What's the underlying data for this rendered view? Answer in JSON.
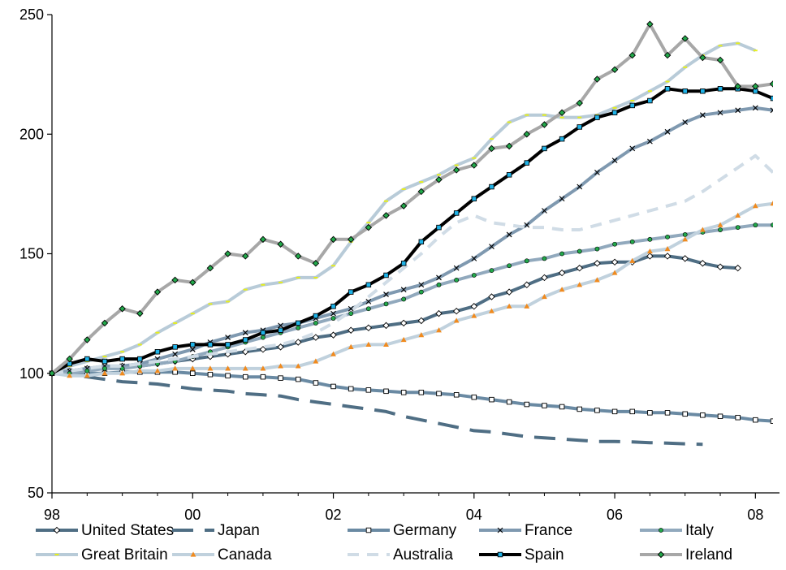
{
  "chart_data": {
    "type": "line",
    "title": "",
    "xlabel": "",
    "ylabel": "",
    "x_start": 1998.0,
    "x_step": 0.25,
    "xlim": [
      1998,
      2008.25
    ],
    "ylim": [
      50,
      250
    ],
    "x_ticks": [
      {
        "value": 1998,
        "label": "98"
      },
      {
        "value": 2000,
        "label": "00"
      },
      {
        "value": 2002,
        "label": "02"
      },
      {
        "value": 2004,
        "label": "04"
      },
      {
        "value": 2006,
        "label": "06"
      },
      {
        "value": 2008,
        "label": "08"
      }
    ],
    "y_ticks": [
      {
        "value": 50,
        "label": "50"
      },
      {
        "value": 100,
        "label": "100"
      },
      {
        "value": 150,
        "label": "150"
      },
      {
        "value": 200,
        "label": "200"
      },
      {
        "value": 250,
        "label": "250"
      }
    ],
    "grid": false,
    "legend_position": "bottom",
    "series": [
      {
        "name": "United States",
        "color": "#4f6e84",
        "width": 4,
        "dash": "",
        "marker": "diamond",
        "marker_fill": "#ffffff",
        "values": [
          100,
          101,
          102,
          102,
          103,
          103,
          104,
          105,
          106,
          107,
          108,
          109,
          110,
          111,
          113,
          115,
          116,
          118,
          119,
          120,
          121,
          122,
          125,
          126,
          128,
          132,
          134,
          137,
          140,
          142,
          144,
          146,
          146.5,
          146.5,
          149,
          149,
          148,
          146,
          144.5,
          144
        ]
      },
      {
        "name": "Japan",
        "color": "#4f6e84",
        "width": 4,
        "dash": "26,14",
        "marker": "none",
        "marker_fill": "",
        "values": [
          100,
          99.5,
          98.5,
          97.5,
          96.5,
          96,
          95.5,
          94.5,
          93.5,
          93,
          92.5,
          91.5,
          91,
          90.5,
          89,
          88,
          87,
          86,
          85,
          84,
          82,
          80.5,
          79,
          77.5,
          76,
          75.5,
          74.5,
          73.5,
          73,
          72.5,
          72,
          71.5,
          71.5,
          71.3,
          71,
          70.8,
          70.5,
          70.3
        ]
      },
      {
        "name": "Germany",
        "color": "#6a8aa3",
        "width": 4,
        "dash": "",
        "marker": "square",
        "marker_fill": "#ffffff",
        "values": [
          100,
          100,
          100,
          100,
          100.5,
          100.5,
          100.5,
          100.5,
          100,
          99.5,
          99,
          98.5,
          98.5,
          98,
          97.5,
          96,
          94.5,
          93.5,
          93,
          92.5,
          92,
          92,
          91.5,
          91,
          90,
          89,
          88,
          87,
          86.5,
          86,
          85,
          84.5,
          84,
          84,
          83.5,
          83.5,
          83,
          82.5,
          82,
          81.5,
          80.5,
          80
        ]
      },
      {
        "name": "France",
        "color": "#7f99b0",
        "width": 4,
        "dash": "",
        "marker": "x",
        "marker_fill": "",
        "values": [
          100,
          101,
          102,
          103,
          103,
          104,
          106,
          108,
          110,
          113,
          115,
          117,
          118,
          120,
          121,
          123,
          125,
          127,
          130,
          133,
          135,
          137,
          140,
          144,
          148,
          153,
          158,
          162,
          168,
          173,
          178,
          184,
          189,
          194,
          197,
          201,
          205,
          208,
          209,
          210,
          211,
          210
        ]
      },
      {
        "name": "Italy",
        "color": "#91a9bd",
        "width": 4,
        "dash": "",
        "marker": "circle",
        "marker_fill": "#22a84a",
        "values": [
          100,
          100,
          101,
          102,
          102,
          103,
          104,
          105,
          107,
          109,
          111,
          113,
          115,
          117,
          119,
          121,
          123,
          125,
          127,
          129,
          131,
          134,
          137,
          139,
          141,
          143,
          145,
          147,
          148,
          150,
          151,
          152,
          154,
          155,
          156,
          157,
          158,
          159,
          160,
          161,
          162,
          162,
          161,
          158
        ]
      },
      {
        "name": "Great Britain",
        "color": "#b8cbd8",
        "width": 4,
        "dash": "",
        "marker": "dash",
        "marker_fill": "#e7ef1b",
        "values": [
          100,
          103,
          105,
          107,
          109,
          112,
          117,
          121,
          125,
          129,
          130,
          135,
          137,
          138,
          140,
          140,
          145,
          155,
          163,
          172,
          177,
          180,
          183,
          187,
          190,
          198,
          205,
          208,
          208,
          207,
          207,
          208,
          211,
          214,
          218,
          222,
          228,
          233,
          237,
          238,
          235
        ]
      },
      {
        "name": "Canada",
        "color": "#c0d1dd",
        "width": 4,
        "dash": "",
        "marker": "triangle",
        "marker_fill": "#f08a1e",
        "values": [
          100,
          99,
          99,
          100,
          100,
          101,
          101,
          102,
          102,
          102,
          102,
          102,
          102,
          103,
          103,
          105,
          108,
          111,
          112,
          112,
          114,
          116,
          118,
          122,
          124,
          126,
          128,
          128,
          132,
          135,
          137,
          139,
          142,
          147,
          151,
          152,
          156,
          160,
          162,
          166,
          170,
          171,
          168
        ]
      },
      {
        "name": "Australia",
        "color": "#d0dce6",
        "width": 4,
        "dash": "14,10",
        "marker": "none",
        "marker_fill": "",
        "values": [
          100,
          101,
          102,
          103,
          103,
          104,
          105,
          106,
          107,
          108,
          109,
          110,
          111,
          112,
          114,
          117,
          121,
          126,
          132,
          138,
          144,
          150,
          157,
          163,
          166,
          163,
          162,
          161,
          161,
          160,
          160,
          162,
          164,
          166,
          168,
          170,
          172,
          176,
          181,
          186,
          191,
          184
        ]
      },
      {
        "name": "Spain",
        "color": "#000000",
        "width": 4,
        "dash": "",
        "marker": "square",
        "marker_fill": "#1fb3e8",
        "values": [
          100,
          104,
          106,
          105,
          106,
          106,
          109,
          111,
          112,
          112,
          112,
          114,
          117,
          118,
          121,
          124,
          128,
          134,
          137,
          141,
          146,
          155,
          161,
          167,
          173,
          178,
          183,
          188,
          194,
          198,
          203,
          207,
          209,
          212,
          214,
          219,
          218,
          218,
          219,
          219,
          218,
          215
        ]
      },
      {
        "name": "Ireland",
        "color": "#a7a7a7",
        "width": 4,
        "dash": "",
        "marker": "diamond",
        "marker_fill": "#22a84a",
        "values": [
          100,
          106,
          114,
          121,
          127,
          125,
          134,
          139,
          138,
          144,
          150,
          149,
          156,
          154,
          149,
          146,
          156,
          156,
          161,
          166,
          170,
          176,
          181,
          185,
          187,
          194,
          195,
          200,
          204,
          209,
          213,
          223,
          227,
          233,
          246,
          233,
          240,
          232,
          231,
          220,
          220,
          221
        ]
      }
    ]
  }
}
